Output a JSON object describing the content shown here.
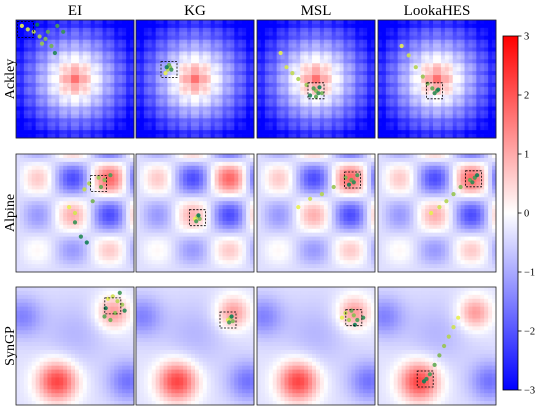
{
  "chart_data": {
    "type": "heatmap",
    "columns": [
      "EI",
      "KG",
      "MSL",
      "LookaHES"
    ],
    "rows": [
      "Ackley",
      "Alpine",
      "SynGP"
    ],
    "colorbar": {
      "min": -3,
      "max": 3,
      "ticks": [
        3,
        2,
        1,
        0,
        -1,
        -2,
        -3
      ],
      "tick_labels": [
        "3",
        "2",
        "1",
        "0",
        "−1",
        "−2",
        "−3"
      ],
      "colormap": "bwr",
      "colors": {
        "low": "#0000ff",
        "mid": "#ffffff",
        "high": "#ff0000"
      }
    },
    "panels": [
      {
        "row": "Ackley",
        "col": "EI",
        "trajectory": [
          [
            0.05,
            0.95
          ],
          [
            0.1,
            0.92
          ],
          [
            0.15,
            0.9
          ],
          [
            0.2,
            0.86
          ],
          [
            0.22,
            0.8
          ],
          [
            0.25,
            0.84
          ],
          [
            0.3,
            0.78
          ],
          [
            0.27,
            0.9
          ],
          [
            0.35,
            0.95
          ],
          [
            0.4,
            0.9
          ],
          [
            0.33,
            0.72
          ],
          [
            0.18,
            0.96
          ]
        ],
        "final_box": [
          0.08,
          0.92
        ]
      },
      {
        "row": "Ackley",
        "col": "KG",
        "trajectory": [
          [
            0.25,
            0.55
          ],
          [
            0.27,
            0.58
          ],
          [
            0.29,
            0.6
          ],
          [
            0.28,
            0.62
          ],
          [
            0.3,
            0.58
          ],
          [
            0.26,
            0.6
          ]
        ],
        "final_box": [
          0.28,
          0.58
        ]
      },
      {
        "row": "Ackley",
        "col": "MSL",
        "trajectory": [
          [
            0.2,
            0.72
          ],
          [
            0.25,
            0.6
          ],
          [
            0.3,
            0.55
          ],
          [
            0.35,
            0.5
          ],
          [
            0.42,
            0.45
          ],
          [
            0.5,
            0.4
          ],
          [
            0.55,
            0.38
          ],
          [
            0.5,
            0.35
          ],
          [
            0.48,
            0.42
          ],
          [
            0.52,
            0.38
          ],
          [
            0.45,
            0.36
          ],
          [
            0.53,
            0.43
          ]
        ],
        "final_box": [
          0.5,
          0.4
        ]
      },
      {
        "row": "Ackley",
        "col": "LookaHES",
        "trajectory": [
          [
            0.2,
            0.78
          ],
          [
            0.26,
            0.7
          ],
          [
            0.32,
            0.6
          ],
          [
            0.38,
            0.52
          ],
          [
            0.42,
            0.46
          ],
          [
            0.46,
            0.42
          ],
          [
            0.5,
            0.4
          ],
          [
            0.48,
            0.38
          ],
          [
            0.51,
            0.41
          ]
        ],
        "final_box": [
          0.48,
          0.4
        ]
      },
      {
        "row": "Alpine",
        "col": "EI",
        "trajectory": [
          [
            0.45,
            0.55
          ],
          [
            0.5,
            0.5
          ],
          [
            0.58,
            0.7
          ],
          [
            0.62,
            0.75
          ],
          [
            0.7,
            0.8
          ],
          [
            0.75,
            0.78
          ],
          [
            0.65,
            0.6
          ],
          [
            0.72,
            0.72
          ],
          [
            0.8,
            0.82
          ],
          [
            0.5,
            0.42
          ],
          [
            0.55,
            0.3
          ],
          [
            0.6,
            0.25
          ]
        ],
        "final_box": [
          0.7,
          0.75
        ]
      },
      {
        "row": "Alpine",
        "col": "KG",
        "trajectory": [
          [
            0.5,
            0.45
          ],
          [
            0.52,
            0.47
          ],
          [
            0.54,
            0.45
          ],
          [
            0.51,
            0.43
          ],
          [
            0.53,
            0.48
          ]
        ],
        "final_box": [
          0.52,
          0.46
        ]
      },
      {
        "row": "Alpine",
        "col": "MSL",
        "trajectory": [
          [
            0.35,
            0.55
          ],
          [
            0.45,
            0.62
          ],
          [
            0.55,
            0.66
          ],
          [
            0.65,
            0.72
          ],
          [
            0.75,
            0.8
          ],
          [
            0.8,
            0.78
          ],
          [
            0.85,
            0.82
          ],
          [
            0.82,
            0.76
          ],
          [
            0.78,
            0.74
          ]
        ],
        "final_box": [
          0.81,
          0.78
        ]
      },
      {
        "row": "Alpine",
        "col": "LookaHES",
        "trajectory": [
          [
            0.45,
            0.5
          ],
          [
            0.52,
            0.55
          ],
          [
            0.58,
            0.6
          ],
          [
            0.64,
            0.66
          ],
          [
            0.7,
            0.72
          ],
          [
            0.78,
            0.78
          ],
          [
            0.82,
            0.8
          ],
          [
            0.8,
            0.76
          ],
          [
            0.84,
            0.82
          ]
        ],
        "final_box": [
          0.81,
          0.79
        ]
      },
      {
        "row": "SynGP",
        "col": "EI",
        "trajectory": [
          [
            0.78,
            0.9
          ],
          [
            0.82,
            0.92
          ],
          [
            0.86,
            0.88
          ],
          [
            0.9,
            0.85
          ],
          [
            0.84,
            0.78
          ],
          [
            0.8,
            0.72
          ],
          [
            0.75,
            0.75
          ],
          [
            0.88,
            0.95
          ],
          [
            0.92,
            0.8
          ],
          [
            0.76,
            0.82
          ]
        ],
        "final_box": [
          0.82,
          0.84
        ]
      },
      {
        "row": "SynGP",
        "col": "KG",
        "trajectory": [
          [
            0.78,
            0.72
          ],
          [
            0.8,
            0.74
          ],
          [
            0.82,
            0.71
          ],
          [
            0.79,
            0.7
          ],
          [
            0.81,
            0.75
          ]
        ],
        "final_box": [
          0.78,
          0.72
        ]
      },
      {
        "row": "SynGP",
        "col": "MSL",
        "trajectory": [
          [
            0.72,
            0.74
          ],
          [
            0.75,
            0.78
          ],
          [
            0.78,
            0.72
          ],
          [
            0.82,
            0.76
          ],
          [
            0.8,
            0.8
          ],
          [
            0.85,
            0.72
          ],
          [
            0.9,
            0.74
          ],
          [
            0.83,
            0.68
          ]
        ],
        "final_box": [
          0.82,
          0.74
        ]
      },
      {
        "row": "SynGP",
        "col": "LookaHES",
        "trajectory": [
          [
            0.68,
            0.74
          ],
          [
            0.64,
            0.66
          ],
          [
            0.6,
            0.58
          ],
          [
            0.56,
            0.5
          ],
          [
            0.52,
            0.42
          ],
          [
            0.48,
            0.34
          ],
          [
            0.44,
            0.26
          ],
          [
            0.41,
            0.22
          ],
          [
            0.39,
            0.2
          ]
        ],
        "final_box": [
          0.4,
          0.22
        ]
      }
    ]
  }
}
